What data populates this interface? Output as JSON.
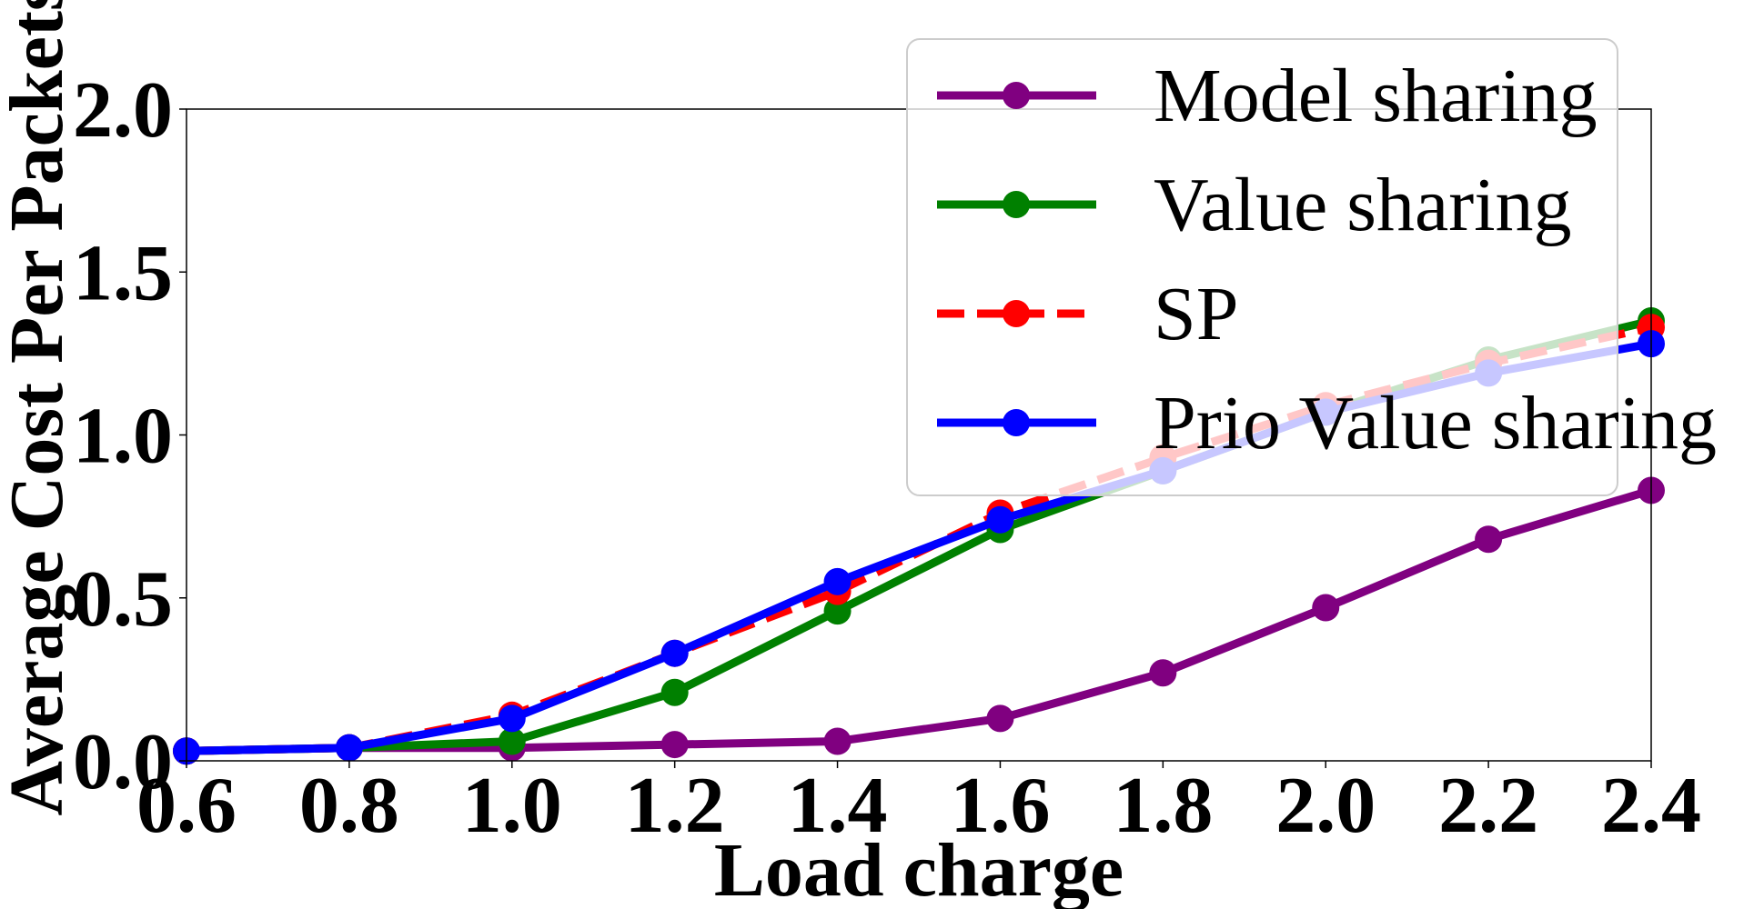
{
  "chart_data": {
    "type": "line",
    "xlabel": "Load charge",
    "ylabel": "Average Cost Per Packets",
    "xlim": [
      0.6,
      2.4
    ],
    "ylim": [
      0.0,
      2.0
    ],
    "x_ticks": [
      "0.6",
      "0.8",
      "1.0",
      "1.2",
      "1.4",
      "1.6",
      "1.8",
      "2.0",
      "2.2",
      "2.4"
    ],
    "y_ticks": [
      "0.0",
      "0.5",
      "1.0",
      "1.5",
      "2.0"
    ],
    "grid": false,
    "legend_position": "top-right",
    "x": [
      0.6,
      0.8,
      1.0,
      1.2,
      1.4,
      1.6,
      1.8,
      2.0,
      2.2,
      2.4
    ],
    "series": [
      {
        "name": "Model sharing",
        "color": "#800080",
        "dash": "solid",
        "values": [
          0.03,
          0.04,
          0.04,
          0.05,
          0.06,
          0.13,
          0.27,
          0.47,
          0.68,
          0.83
        ]
      },
      {
        "name": "Value sharing",
        "color": "#008000",
        "dash": "solid",
        "values": [
          0.03,
          0.04,
          0.06,
          0.21,
          0.46,
          0.71,
          0.89,
          1.07,
          1.23,
          1.35
        ]
      },
      {
        "name": "SP",
        "color": "#ff0000",
        "dash": "dashed",
        "values": [
          0.03,
          0.04,
          0.14,
          0.33,
          0.52,
          0.76,
          0.93,
          1.09,
          1.22,
          1.33
        ]
      },
      {
        "name": "Prio Value sharing",
        "color": "#0000ff",
        "dash": "solid",
        "values": [
          0.03,
          0.04,
          0.13,
          0.33,
          0.55,
          0.74,
          0.89,
          1.07,
          1.19,
          1.28
        ]
      }
    ]
  }
}
